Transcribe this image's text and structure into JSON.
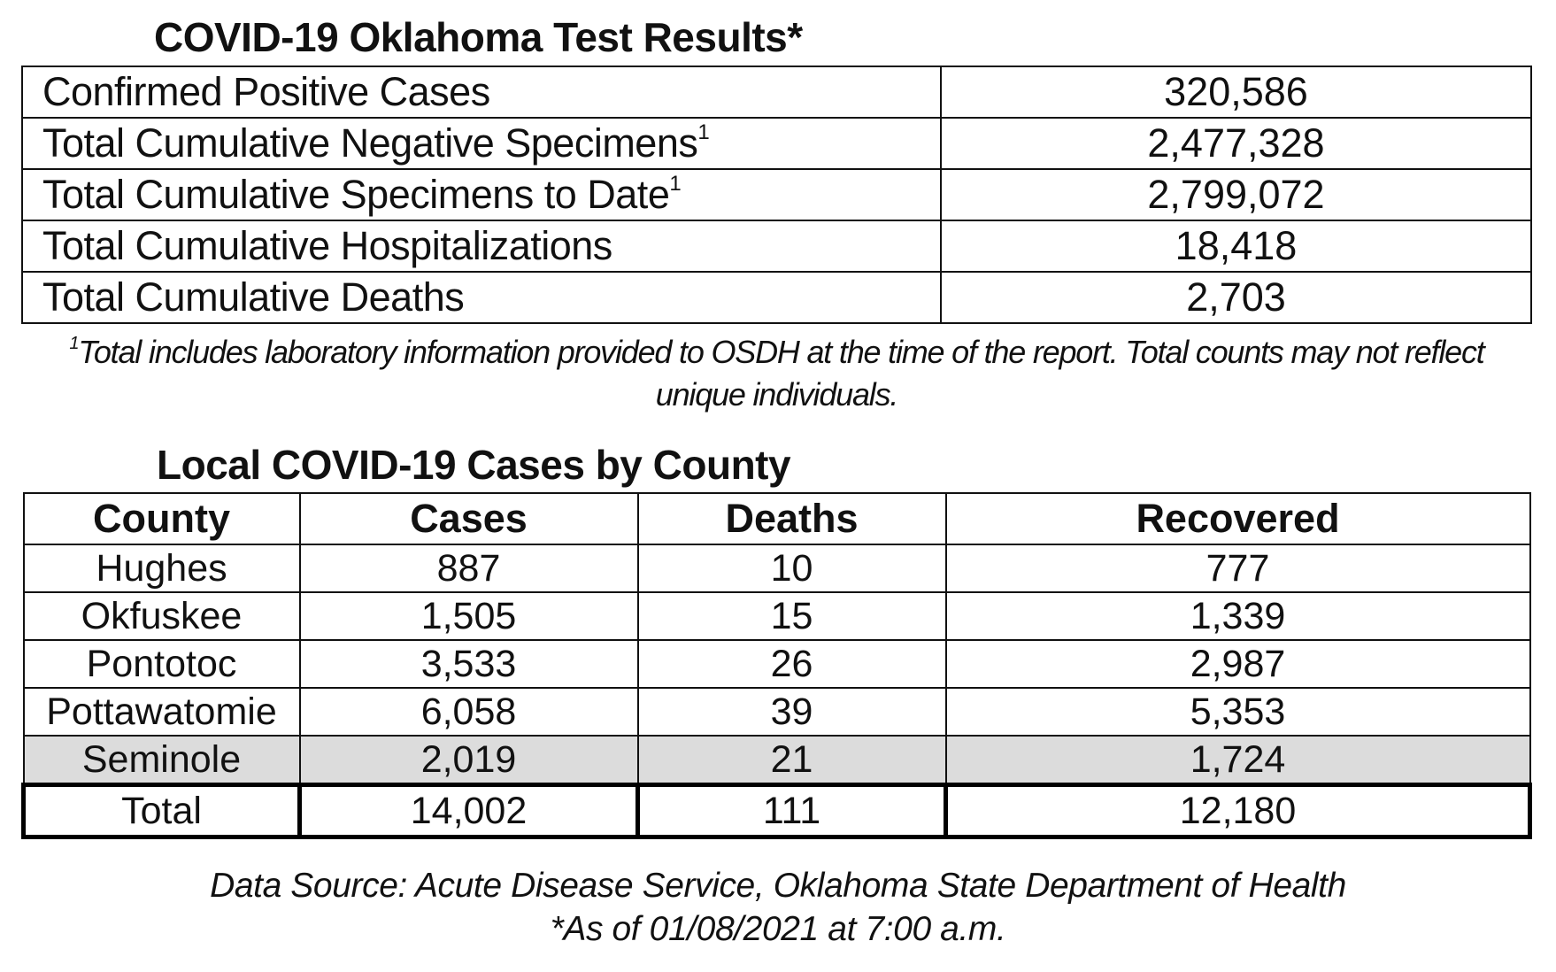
{
  "tests": {
    "title": "COVID-19 Oklahoma Test Results*",
    "rows": [
      {
        "label": "Confirmed Positive Cases",
        "sup": "",
        "value": "320,586"
      },
      {
        "label": "Total Cumulative Negative Specimens",
        "sup": "1",
        "value": "2,477,328"
      },
      {
        "label": "Total Cumulative Specimens to Date",
        "sup": "1",
        "value": "2,799,072"
      },
      {
        "label": "Total Cumulative Hospitalizations",
        "sup": "",
        "value": "18,418"
      },
      {
        "label": "Total Cumulative Deaths",
        "sup": "",
        "value": "2,703"
      }
    ],
    "footnote_mark": "1",
    "footnote_line1": "Total includes laboratory information provided to OSDH at the time of the report. Total counts may not reflect",
    "footnote_line2": "unique individuals."
  },
  "county": {
    "title": "Local COVID-19 Cases by County",
    "headers": [
      "County",
      "Cases",
      "Deaths",
      "Recovered"
    ],
    "rows": [
      [
        "Hughes",
        "887",
        "10",
        "777"
      ],
      [
        "Okfuskee",
        "1,505",
        "15",
        "1,339"
      ],
      [
        "Pontotoc",
        "3,533",
        "26",
        "2,987"
      ],
      [
        "Pottawatomie",
        "6,058",
        "39",
        "5,353"
      ],
      [
        "Seminole",
        "2,019",
        "21",
        "1,724"
      ]
    ],
    "total": [
      "Total",
      "14,002",
      "111",
      "12,180"
    ]
  },
  "source": "Data Source: Acute Disease Service, Oklahoma State Department of Health",
  "as_of": "*As of 01/08/2021 at 7:00 a.m."
}
